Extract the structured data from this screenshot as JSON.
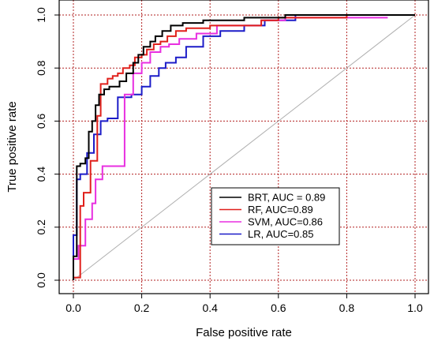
{
  "chart_data": {
    "type": "line",
    "title": "",
    "xlabel": "False positive rate",
    "ylabel": "True positive rate",
    "xlim": [
      0,
      1
    ],
    "ylim": [
      0,
      1
    ],
    "x_ticks": [
      "0.0",
      "0.2",
      "0.4",
      "0.6",
      "0.8",
      "1.0"
    ],
    "y_ticks": [
      "0.0",
      "0.2",
      "0.4",
      "0.6",
      "0.8",
      "1.0"
    ],
    "grid": true,
    "grid_color": "#b22222",
    "legend_position": "bottom-right",
    "reference_line": {
      "x": [
        0,
        1
      ],
      "y": [
        0,
        1
      ],
      "color": "#b0b0b0"
    },
    "series": [
      {
        "name": "BRT, AUC = 0.89",
        "color": "#000000",
        "x": [
          0,
          0,
          0.01,
          0.01,
          0.02,
          0.02,
          0.035,
          0.035,
          0.045,
          0.045,
          0.055,
          0.055,
          0.065,
          0.065,
          0.075,
          0.075,
          0.09,
          0.09,
          0.105,
          0.105,
          0.135,
          0.135,
          0.155,
          0.155,
          0.175,
          0.175,
          0.19,
          0.19,
          0.205,
          0.205,
          0.225,
          0.225,
          0.24,
          0.24,
          0.26,
          0.26,
          0.285,
          0.285,
          0.32,
          0.32,
          0.38,
          0.38,
          0.5,
          0.5,
          0.62,
          0.62,
          1.0
        ],
        "y": [
          0,
          0.09,
          0.09,
          0.43,
          0.43,
          0.44,
          0.44,
          0.46,
          0.46,
          0.56,
          0.56,
          0.6,
          0.6,
          0.66,
          0.66,
          0.7,
          0.7,
          0.72,
          0.72,
          0.73,
          0.73,
          0.75,
          0.75,
          0.78,
          0.78,
          0.82,
          0.82,
          0.85,
          0.85,
          0.88,
          0.88,
          0.9,
          0.9,
          0.92,
          0.92,
          0.94,
          0.94,
          0.96,
          0.96,
          0.97,
          0.97,
          0.98,
          0.98,
          0.99,
          0.99,
          1.0,
          1.0
        ]
      },
      {
        "name": "RF, AUC=0.89",
        "color": "#e0201b",
        "x": [
          0,
          0.02,
          0.02,
          0.03,
          0.03,
          0.05,
          0.05,
          0.07,
          0.07,
          0.08,
          0.08,
          0.1,
          0.1,
          0.115,
          0.115,
          0.13,
          0.13,
          0.145,
          0.145,
          0.165,
          0.165,
          0.18,
          0.18,
          0.2,
          0.2,
          0.215,
          0.215,
          0.235,
          0.235,
          0.255,
          0.255,
          0.275,
          0.275,
          0.3,
          0.3,
          0.33,
          0.33,
          0.4,
          0.4,
          0.55,
          0.55,
          0.6,
          0.6,
          0.8,
          0.8,
          0.88,
          0.88
        ],
        "y": [
          0.01,
          0.01,
          0.28,
          0.28,
          0.33,
          0.33,
          0.45,
          0.45,
          0.62,
          0.62,
          0.74,
          0.74,
          0.76,
          0.76,
          0.77,
          0.77,
          0.78,
          0.78,
          0.8,
          0.8,
          0.81,
          0.81,
          0.84,
          0.84,
          0.85,
          0.85,
          0.87,
          0.87,
          0.89,
          0.89,
          0.9,
          0.9,
          0.92,
          0.92,
          0.94,
          0.94,
          0.95,
          0.95,
          0.96,
          0.96,
          0.98,
          0.98,
          0.99,
          0.99,
          1.0,
          1.0,
          1.0
        ]
      },
      {
        "name": "SVM, AUC=0.86",
        "color": "#e82fe0",
        "x": [
          0,
          0.015,
          0.015,
          0.035,
          0.035,
          0.055,
          0.055,
          0.065,
          0.065,
          0.085,
          0.085,
          0.1,
          0.1,
          0.15,
          0.15,
          0.175,
          0.175,
          0.2,
          0.2,
          0.225,
          0.225,
          0.255,
          0.255,
          0.28,
          0.28,
          0.31,
          0.31,
          0.36,
          0.36,
          0.42,
          0.42,
          0.55,
          0.55,
          0.62,
          0.62,
          0.86,
          0.86,
          0.92
        ],
        "y": [
          0.08,
          0.08,
          0.13,
          0.13,
          0.23,
          0.23,
          0.29,
          0.29,
          0.38,
          0.38,
          0.43,
          0.43,
          0.43,
          0.43,
          0.7,
          0.7,
          0.78,
          0.78,
          0.82,
          0.82,
          0.86,
          0.86,
          0.88,
          0.88,
          0.89,
          0.89,
          0.91,
          0.91,
          0.93,
          0.93,
          0.96,
          0.96,
          0.98,
          0.98,
          0.99,
          0.99,
          0.99,
          0.99
        ]
      },
      {
        "name": "LR, AUC=0.85",
        "color": "#1c1cc8",
        "x": [
          0,
          0,
          0.01,
          0.01,
          0.02,
          0.02,
          0.04,
          0.04,
          0.06,
          0.06,
          0.08,
          0.08,
          0.1,
          0.1,
          0.13,
          0.13,
          0.17,
          0.17,
          0.2,
          0.2,
          0.225,
          0.225,
          0.25,
          0.25,
          0.27,
          0.27,
          0.3,
          0.3,
          0.33,
          0.33,
          0.38,
          0.38,
          0.43,
          0.43,
          0.5,
          0.5,
          0.56,
          0.56,
          0.65,
          0.65,
          1.0
        ],
        "y": [
          0,
          0.17,
          0.17,
          0.38,
          0.38,
          0.4,
          0.4,
          0.48,
          0.48,
          0.55,
          0.55,
          0.6,
          0.6,
          0.61,
          0.61,
          0.69,
          0.69,
          0.7,
          0.7,
          0.73,
          0.73,
          0.77,
          0.77,
          0.8,
          0.8,
          0.82,
          0.82,
          0.84,
          0.84,
          0.88,
          0.88,
          0.92,
          0.92,
          0.94,
          0.94,
          0.96,
          0.96,
          0.98,
          0.98,
          1.0,
          1.0
        ]
      }
    ]
  }
}
